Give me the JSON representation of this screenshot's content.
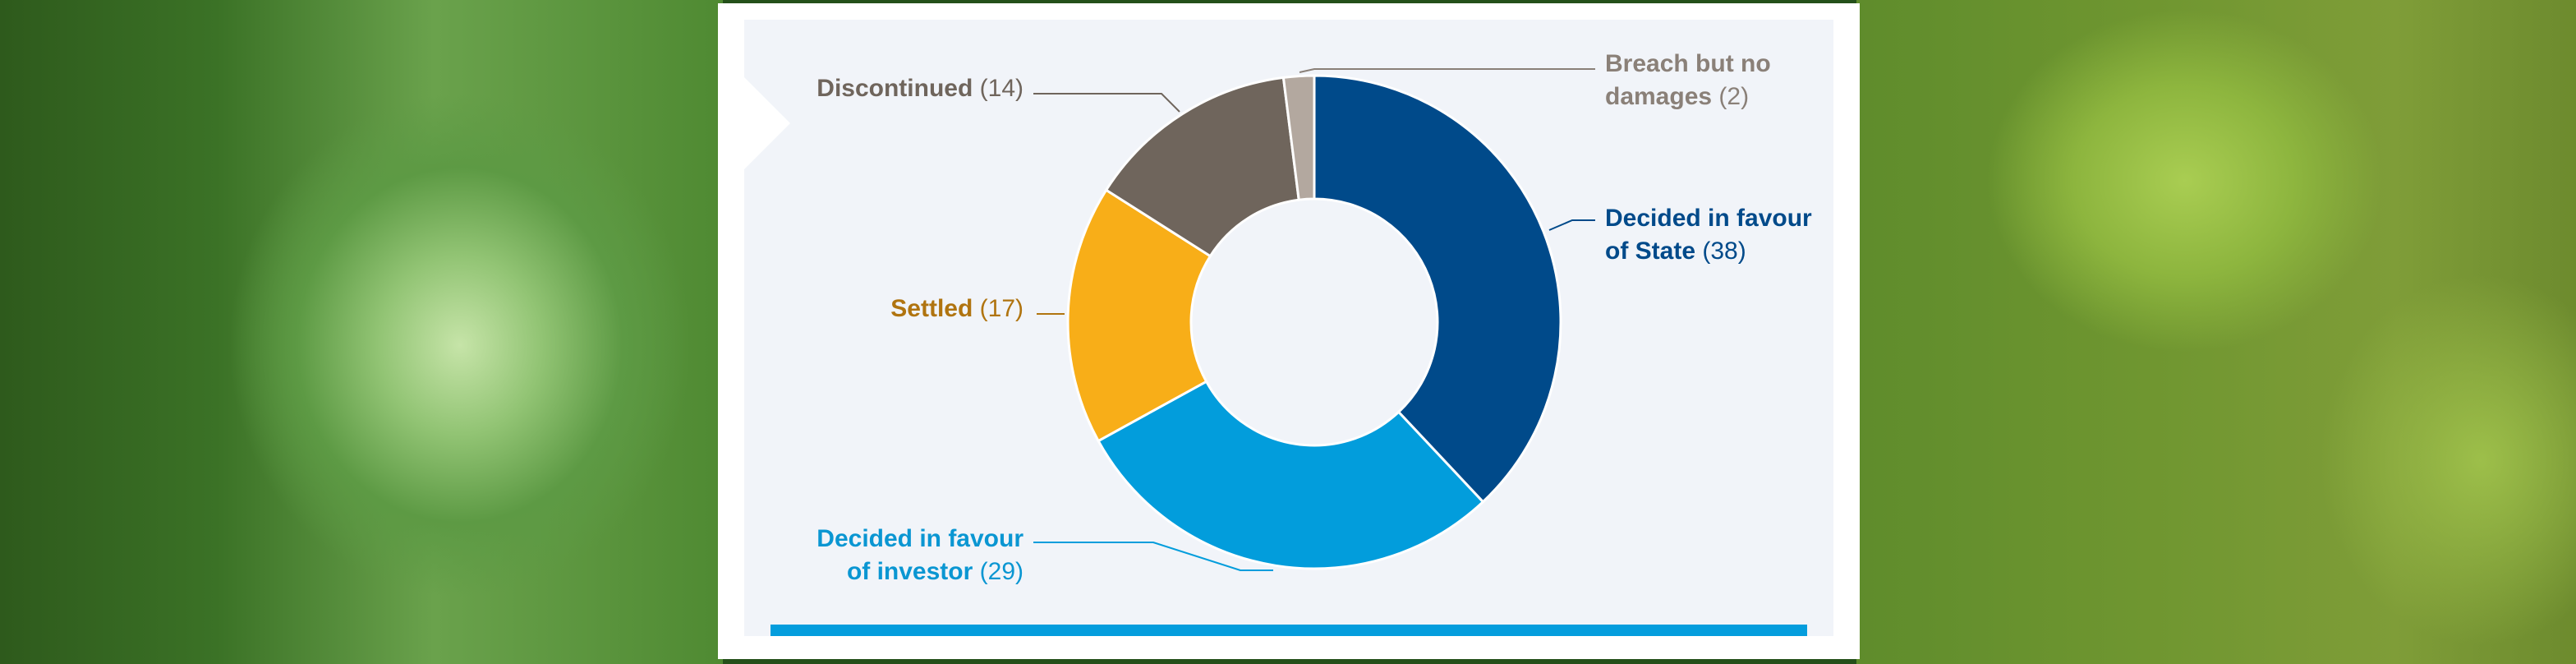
{
  "chart_data": {
    "type": "pie",
    "donut": true,
    "slices": [
      {
        "label_lines": [
          "Decided in favour",
          "of State"
        ],
        "value": 38,
        "value_text": "(38)",
        "color": "#004a8a",
        "label_color": "#004a8a"
      },
      {
        "label_lines": [
          "Decided in favour",
          "of investor"
        ],
        "value": 29,
        "value_text": "(29)",
        "color": "#029ddc",
        "label_color": "#0a96d2"
      },
      {
        "label_lines": [
          "Settled"
        ],
        "value": 17,
        "value_text": "(17)",
        "color": "#f8ae18",
        "label_color": "#b07410"
      },
      {
        "label_lines": [
          "Discontinued"
        ],
        "value": 14,
        "value_text": "(14)",
        "color": "#6f655c",
        "label_color": "#6f655c"
      },
      {
        "label_lines": [
          "Breach but no",
          "damages"
        ],
        "value": 2,
        "value_text": "(2)",
        "color": "#b3a89f",
        "label_color": "#8a8078"
      }
    ]
  }
}
